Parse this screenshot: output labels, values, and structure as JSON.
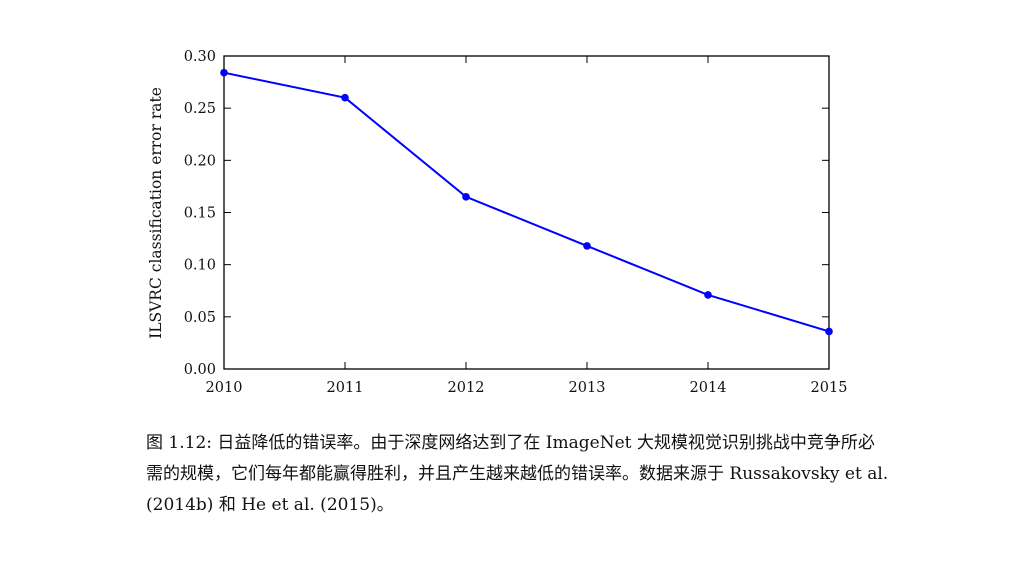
{
  "chart_data": {
    "type": "line",
    "x": [
      2010,
      2011,
      2012,
      2013,
      2014,
      2015
    ],
    "series": [
      {
        "values": [
          0.284,
          0.26,
          0.165,
          0.118,
          0.071,
          0.036
        ],
        "color": "#0000ff"
      }
    ],
    "xlim": [
      2010,
      2015
    ],
    "ylim": [
      0.0,
      0.3
    ],
    "xticks": [
      "2010",
      "2011",
      "2012",
      "2013",
      "2014",
      "2015"
    ],
    "yticks": [
      "0.00",
      "0.05",
      "0.10",
      "0.15",
      "0.20",
      "0.25",
      "0.30"
    ],
    "xlabel": "",
    "ylabel": "ILSVRC classification error rate",
    "grid": false,
    "marker": "circle"
  },
  "caption": {
    "line1": "图 1.12: 日益降低的错误率。由于深度网络达到了在 ImageNet 大规模视觉识别挑战中竞争所必",
    "line2": "需的规模，它们每年都能赢得胜利，并且产生越来越低的错误率。数据来源于 Russakovsky et al.",
    "line3": "(2014b) 和 He et al. (2015)。"
  }
}
